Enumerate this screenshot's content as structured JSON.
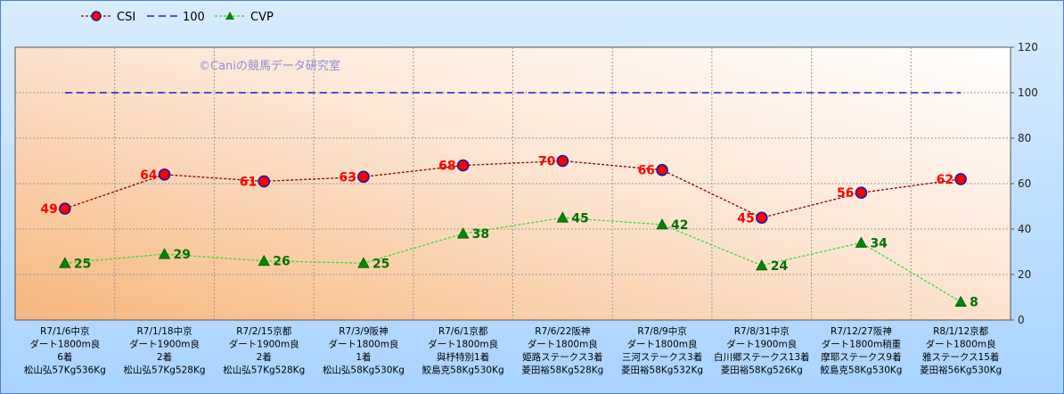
{
  "chart_data": {
    "type": "line",
    "watermark": "©Caniの競馬データ研究室",
    "legend_position": "top-left",
    "y_axis_side": "right",
    "ylim": [
      0,
      120
    ],
    "yticks": [
      0,
      20,
      40,
      60,
      80,
      100,
      120
    ],
    "grid": true,
    "categories": [
      [
        "R7/1/6中京",
        "ダート1800m良",
        "6着",
        "松山弘57Kg536Kg"
      ],
      [
        "R7/1/18中京",
        "ダート1900m良",
        "2着",
        "松山弘57Kg528Kg"
      ],
      [
        "R7/2/15京都",
        "ダート1900m良",
        "2着",
        "松山弘57Kg528Kg"
      ],
      [
        "R7/3/9阪神",
        "ダート1800m良",
        "1着",
        "松山弘58Kg530Kg"
      ],
      [
        "R7/6/1京都",
        "ダート1800m良",
        "與杼特別1着",
        "鮫島克58Kg530Kg"
      ],
      [
        "R7/6/22阪神",
        "ダート1800m良",
        "姫路ステークス3着",
        "菱田裕58Kg528Kg"
      ],
      [
        "R7/8/9中京",
        "ダート1800m良",
        "三河ステークス3着",
        "菱田裕58Kg532Kg"
      ],
      [
        "R7/8/31中京",
        "ダート1900m良",
        "白川郷ステークス13着",
        "菱田裕58Kg526Kg"
      ],
      [
        "R7/12/27阪神",
        "ダート1800m稍重",
        "摩耶ステークス9着",
        "鮫島克58Kg530Kg"
      ],
      [
        "R8/1/12京都",
        "ダート1800m良",
        "雅ステークス15着",
        "菱田裕56Kg530Kg"
      ]
    ],
    "series": [
      {
        "name": "CSI",
        "color": "#8b0000",
        "marker": "circle",
        "marker_fill": "#ff0000",
        "marker_stroke": "#1a1aa0",
        "label_color": "#ff0000",
        "label_side": "left",
        "values": [
          49,
          64,
          61,
          63,
          68,
          70,
          66,
          45,
          56,
          62
        ]
      },
      {
        "name": "100",
        "color": "#1a1acc",
        "dashed": true,
        "values": [
          100,
          100,
          100,
          100,
          100,
          100,
          100,
          100,
          100,
          100
        ]
      },
      {
        "name": "CVP",
        "color": "#33dd33",
        "marker": "triangle",
        "marker_fill": "#008800",
        "label_color": "#007000",
        "label_side": "right",
        "values": [
          25,
          29,
          26,
          25,
          38,
          45,
          42,
          24,
          34,
          8
        ]
      }
    ]
  }
}
